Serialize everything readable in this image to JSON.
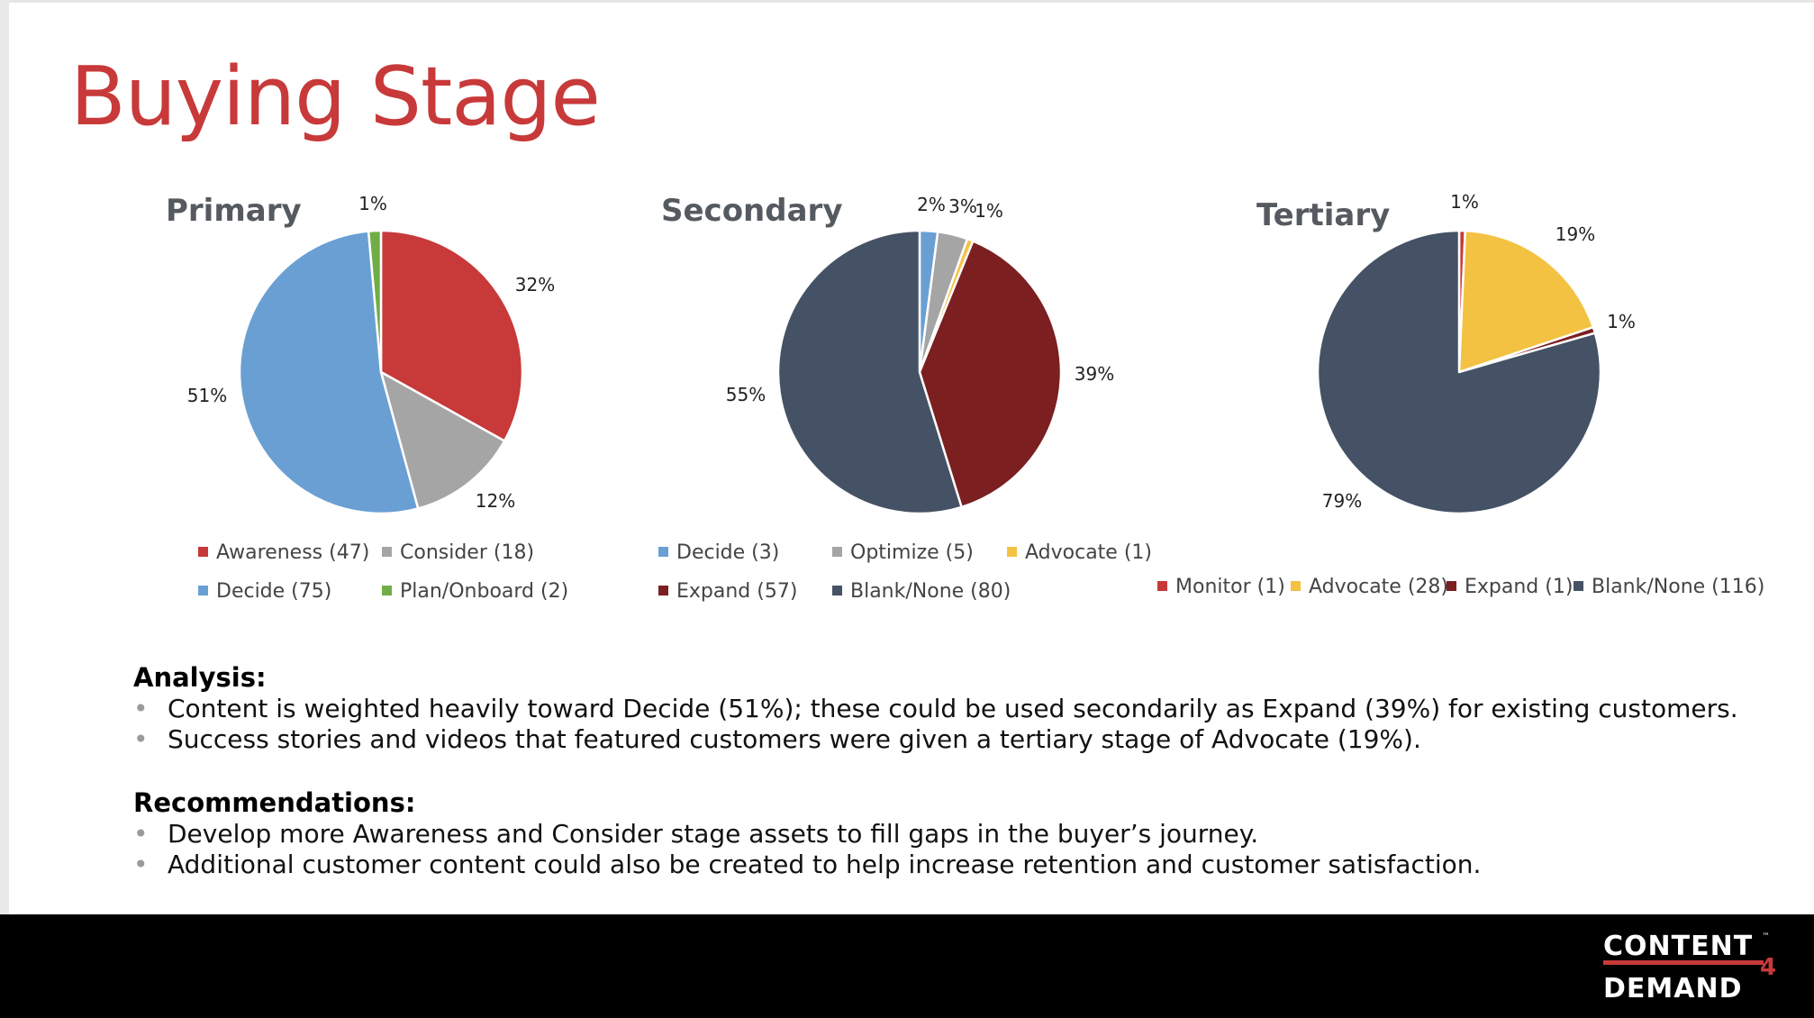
{
  "slide": {
    "title": "Buying Stage",
    "analysis_heading": "Analysis:",
    "analysis_bullets": [
      "Content is weighted heavily toward Decide (51%); these could be used secondarily as Expand (39%) for existing customers.",
      "Success stories and videos that featured customers were given a tertiary stage of Advocate (19%)."
    ],
    "recommendations_heading": "Recommendations:",
    "recommendations_bullets": [
      "Develop more Awareness and Consider stage assets to fill gaps in the buyer’s journey.",
      "Additional customer content could also be created to help increase retention and customer satisfaction."
    ],
    "bullet_glyph": "•"
  },
  "brand": {
    "logo_top": "CONTENT",
    "logo_num": "4",
    "logo_bottom": "DEMAND",
    "logo_tm": "™",
    "accent": "#c8393a"
  },
  "chart_data": [
    {
      "type": "pie",
      "title": "Primary",
      "slices": [
        {
          "label": "Awareness",
          "value": 47,
          "pct_label": "32%",
          "legend": "Awareness (47)",
          "color": "#c8393a"
        },
        {
          "label": "Consider",
          "value": 18,
          "pct_label": "12%",
          "legend": "Consider (18)",
          "color": "#a5a5a5"
        },
        {
          "label": "Decide",
          "value": 75,
          "pct_label": "51%",
          "legend": "Decide (75)",
          "color": "#6a9fd4"
        },
        {
          "label": "Plan/Onboard",
          "value": 2,
          "pct_label": "1%",
          "legend": "Plan/Onboard (2)",
          "color": "#70ad47"
        }
      ]
    },
    {
      "type": "pie",
      "title": "Secondary",
      "slices": [
        {
          "label": "Decide",
          "value": 3,
          "pct_label": "2%",
          "legend": "Decide (3)",
          "color": "#6a9fd4"
        },
        {
          "label": "Optimize",
          "value": 5,
          "pct_label": "3%",
          "legend": "Optimize (5)",
          "color": "#a5a5a5"
        },
        {
          "label": "Advocate",
          "value": 1,
          "pct_label": "1%",
          "legend": "Advocate (1)",
          "color": "#f4c242"
        },
        {
          "label": "Expand",
          "value": 57,
          "pct_label": "39%",
          "legend": "Expand (57)",
          "color": "#7b1f20"
        },
        {
          "label": "Blank/None",
          "value": 80,
          "pct_label": "55%",
          "legend": "Blank/None (80)",
          "color": "#455265"
        }
      ]
    },
    {
      "type": "pie",
      "title": "Tertiary",
      "slices": [
        {
          "label": "Monitor",
          "value": 1,
          "pct_label": "1%",
          "legend": "Monitor (1)",
          "color": "#c8393a"
        },
        {
          "label": "Advocate",
          "value": 28,
          "pct_label": "19%",
          "legend": "Advocate (28)",
          "color": "#f4c242"
        },
        {
          "label": "Expand",
          "value": 1,
          "pct_label": "1%",
          "legend": "Expand (1)",
          "color": "#7b1f20"
        },
        {
          "label": "Blank/None",
          "value": 116,
          "pct_label": "79%",
          "legend": "Blank/None (116)",
          "color": "#455265"
        }
      ]
    }
  ]
}
